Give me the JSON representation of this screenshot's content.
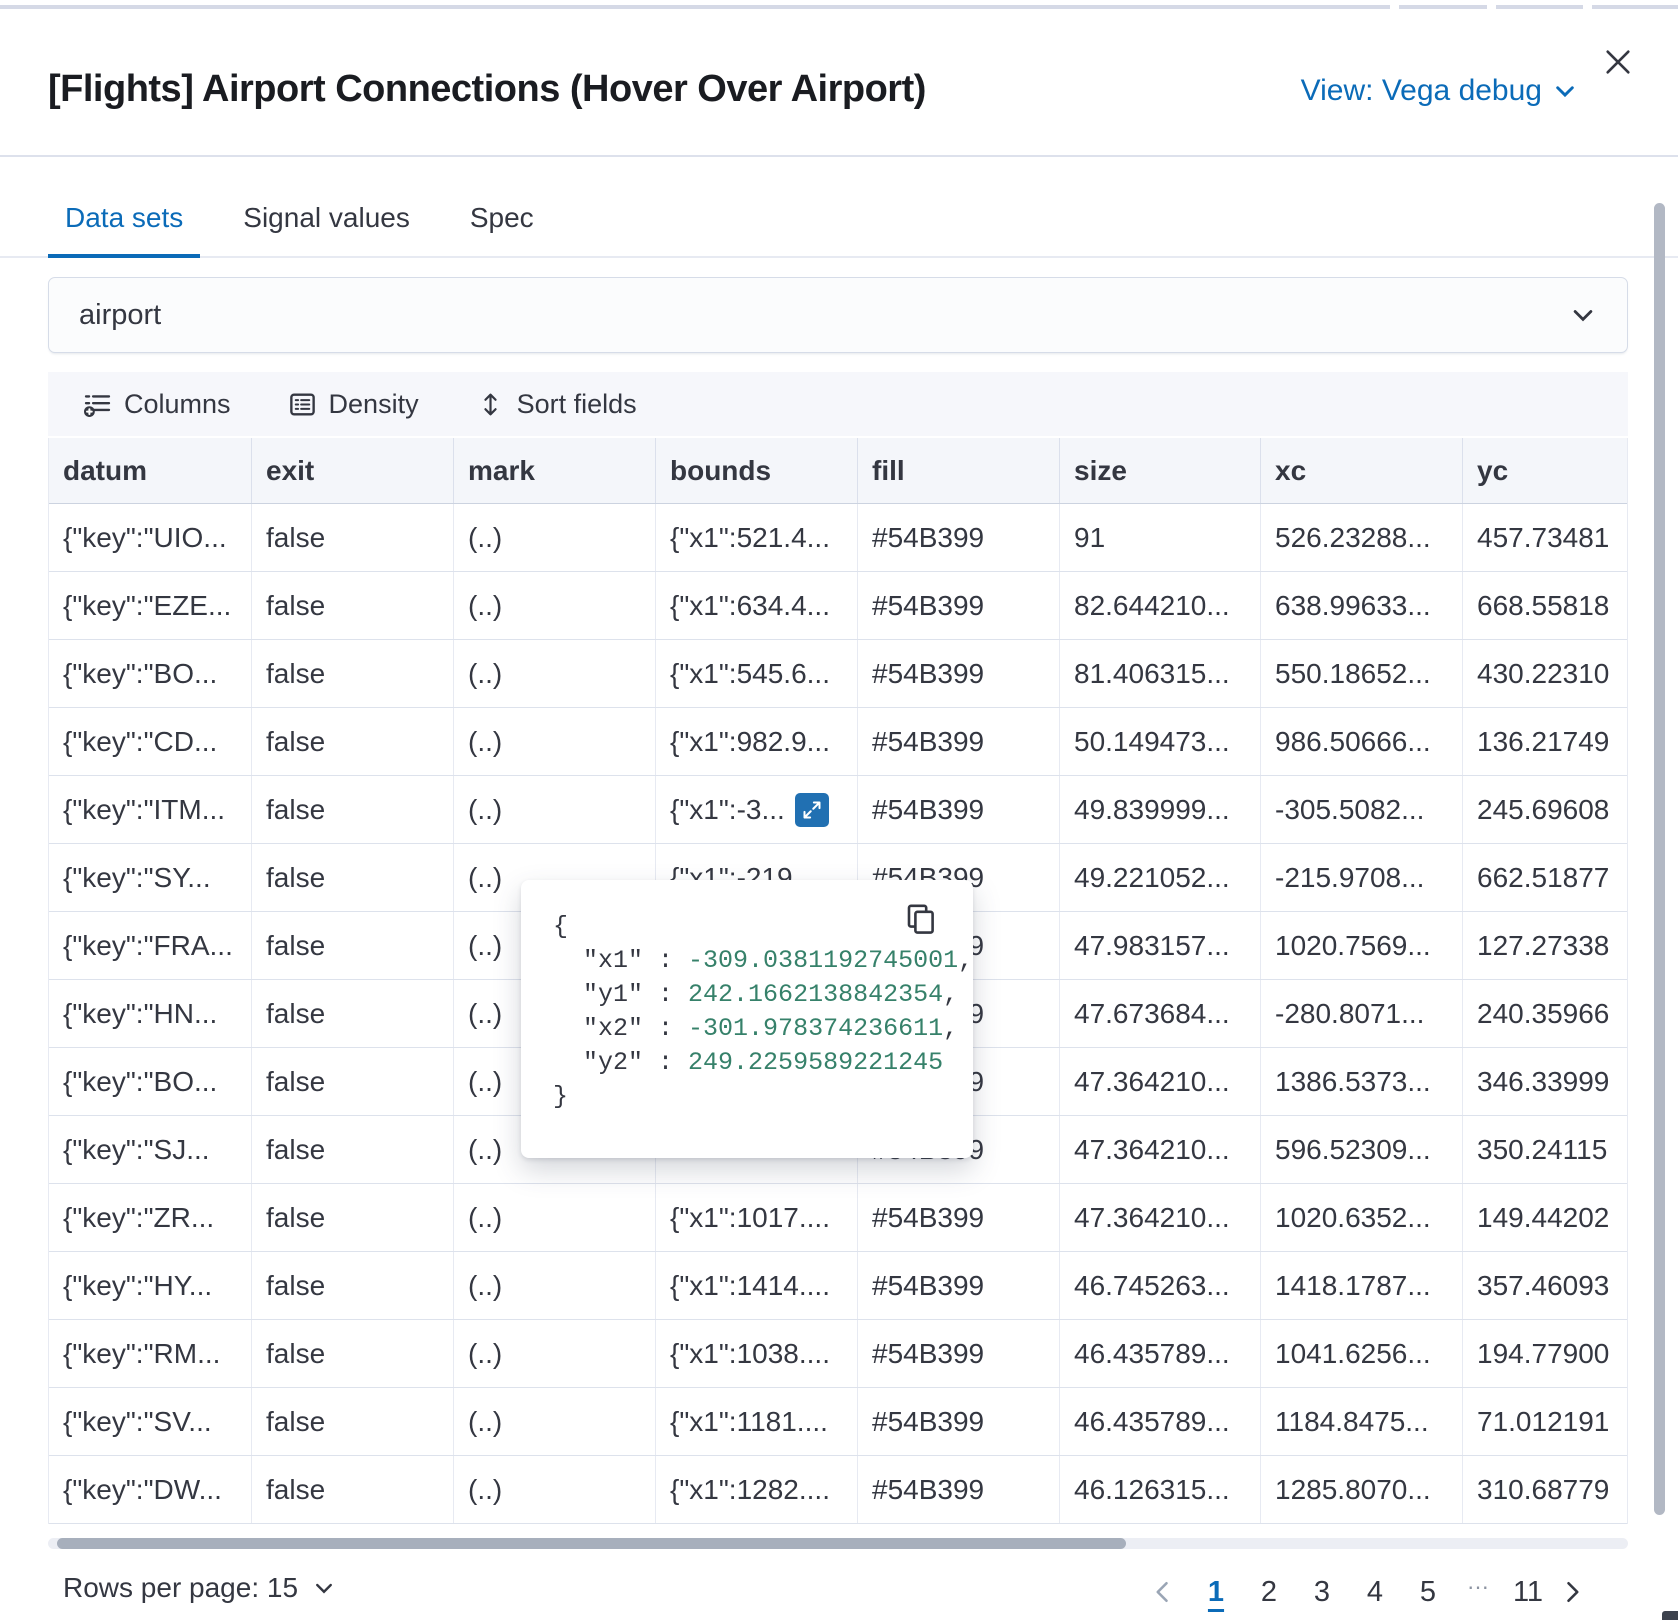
{
  "colors": {
    "accent": "#0b6bb8",
    "expand_button": "#2170b2",
    "json_number": "#36816a"
  },
  "header": {
    "title": "[Flights] Airport Connections (Hover Over Airport)",
    "view_label": "View: Vega debug"
  },
  "tabs": {
    "items": [
      {
        "label": "Data sets",
        "active": true
      },
      {
        "label": "Signal values",
        "active": false
      },
      {
        "label": "Spec",
        "active": false
      }
    ]
  },
  "dataset_select": {
    "value": "airport"
  },
  "toolbar": {
    "columns_label": "Columns",
    "density_label": "Density",
    "sort_label": "Sort fields"
  },
  "table": {
    "columns": [
      "datum",
      "exit",
      "mark",
      "bounds",
      "fill",
      "size",
      "xc",
      "yc"
    ],
    "rows": [
      {
        "datum": "{\"key\":\"UIO...",
        "exit": "false",
        "mark": "(..)",
        "bounds": "{\"x1\":521.4...",
        "fill": "#54B399",
        "size": "91",
        "xc": "526.23288...",
        "yc": "457.73481"
      },
      {
        "datum": "{\"key\":\"EZE...",
        "exit": "false",
        "mark": "(..)",
        "bounds": "{\"x1\":634.4...",
        "fill": "#54B399",
        "size": "82.644210...",
        "xc": "638.99633...",
        "yc": "668.55818"
      },
      {
        "datum": "{\"key\":\"BO...",
        "exit": "false",
        "mark": "(..)",
        "bounds": "{\"x1\":545.6...",
        "fill": "#54B399",
        "size": "81.406315...",
        "xc": "550.18652...",
        "yc": "430.22310"
      },
      {
        "datum": "{\"key\":\"CD...",
        "exit": "false",
        "mark": "(..)",
        "bounds": "{\"x1\":982.9...",
        "fill": "#54B399",
        "size": "50.149473...",
        "xc": "986.50666...",
        "yc": "136.21749"
      },
      {
        "datum": "{\"key\":\"ITM...",
        "exit": "false",
        "mark": "(..)",
        "bounds": "{\"x1\":-3...",
        "expand_button": true,
        "fill": "#54B399",
        "size": "49.839999...",
        "xc": "-305.5082...",
        "yc": "245.69608"
      },
      {
        "datum": "{\"key\":\"SY...",
        "exit": "false",
        "mark": "(..)",
        "bounds": "{\"x1\":-219...",
        "fill": "#54B399",
        "size": "49.221052...",
        "xc": "-215.9708...",
        "yc": "662.51877"
      },
      {
        "datum": "{\"key\":\"FRA...",
        "exit": "false",
        "mark": "(..)",
        "bounds": "",
        "fill": "#54B399",
        "size": "47.983157...",
        "xc": "1020.7569...",
        "yc": "127.27338"
      },
      {
        "datum": "{\"key\":\"HN...",
        "exit": "false",
        "mark": "(..)",
        "bounds": "",
        "fill": "#54B399",
        "size": "47.673684...",
        "xc": "-280.8071...",
        "yc": "240.35966"
      },
      {
        "datum": "{\"key\":\"BO...",
        "exit": "false",
        "mark": "(..)",
        "bounds": "",
        "fill": "#54B399",
        "size": "47.364210...",
        "xc": "1386.5373...",
        "yc": "346.33999"
      },
      {
        "datum": "{\"key\":\"SJ...",
        "exit": "false",
        "mark": "(..)",
        "bounds": "",
        "fill": "#54B399",
        "size": "47.364210...",
        "xc": "596.52309...",
        "yc": "350.24115"
      },
      {
        "datum": "{\"key\":\"ZR...",
        "exit": "false",
        "mark": "(..)",
        "bounds": "{\"x1\":1017....",
        "fill": "#54B399",
        "size": "47.364210...",
        "xc": "1020.6352...",
        "yc": "149.44202"
      },
      {
        "datum": "{\"key\":\"HY...",
        "exit": "false",
        "mark": "(..)",
        "bounds": "{\"x1\":1414....",
        "fill": "#54B399",
        "size": "46.745263...",
        "xc": "1418.1787...",
        "yc": "357.46093"
      },
      {
        "datum": "{\"key\":\"RM...",
        "exit": "false",
        "mark": "(..)",
        "bounds": "{\"x1\":1038....",
        "fill": "#54B399",
        "size": "46.435789...",
        "xc": "1041.6256...",
        "yc": "194.77900"
      },
      {
        "datum": "{\"key\":\"SV...",
        "exit": "false",
        "mark": "(..)",
        "bounds": "{\"x1\":1181....",
        "fill": "#54B399",
        "size": "46.435789...",
        "xc": "1184.8475...",
        "yc": "71.012191"
      },
      {
        "datum": "{\"key\":\"DW...",
        "exit": "false",
        "mark": "(..)",
        "bounds": "{\"x1\":1282....",
        "fill": "#54B399",
        "size": "46.126315...",
        "xc": "1285.8070...",
        "yc": "310.68779"
      }
    ]
  },
  "popover": {
    "open_brace": "{",
    "close_brace": "}",
    "lines": [
      {
        "key": "\"x1\"",
        "sep": " : ",
        "value": "-309.0381192745001",
        "comma": ","
      },
      {
        "key": "\"y1\"",
        "sep": " : ",
        "value": "242.1662138842354",
        "comma": ","
      },
      {
        "key": "\"x2\"",
        "sep": " : ",
        "value": "-301.978374236611",
        "comma": ","
      },
      {
        "key": "\"y2\"",
        "sep": " : ",
        "value": "249.2259589221245",
        "comma": ""
      }
    ]
  },
  "footer": {
    "rows_per_page_label": "Rows per page: 15",
    "pages": [
      "1",
      "2",
      "3",
      "4",
      "5",
      "…",
      "11"
    ],
    "active_page": "1"
  }
}
